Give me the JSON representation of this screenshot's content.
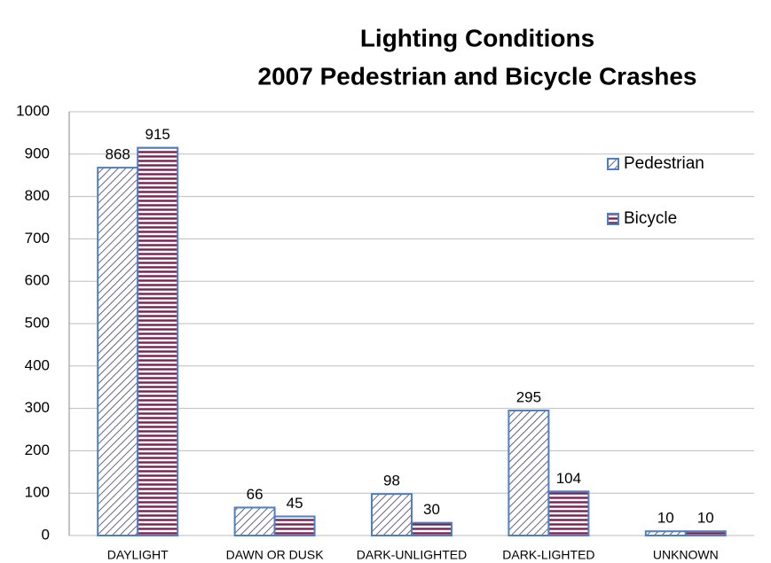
{
  "chart_data": {
    "type": "bar",
    "title": [
      "Lighting Conditions",
      "2007 Pedestrian and Bicycle Crashes"
    ],
    "categories": [
      "DAYLIGHT",
      "DAWN OR DUSK",
      "DARK-UNLIGHTED",
      "DARK-LIGHTED",
      "UNKNOWN"
    ],
    "series": [
      {
        "name": "Pedestrian",
        "color": "#3c3c66",
        "pattern": "diagonal",
        "values": [
          868,
          66,
          98,
          295,
          10
        ]
      },
      {
        "name": "Bicycle",
        "color": "#7a1f52",
        "pattern": "horizontal",
        "values": [
          915,
          45,
          30,
          104,
          10
        ]
      }
    ],
    "edge_color": "#4f7fc0",
    "ylim": [
      0,
      1000
    ],
    "yticks": [
      0,
      100,
      200,
      300,
      400,
      500,
      600,
      700,
      800,
      900,
      1000
    ],
    "grid": true,
    "legend": "right"
  }
}
